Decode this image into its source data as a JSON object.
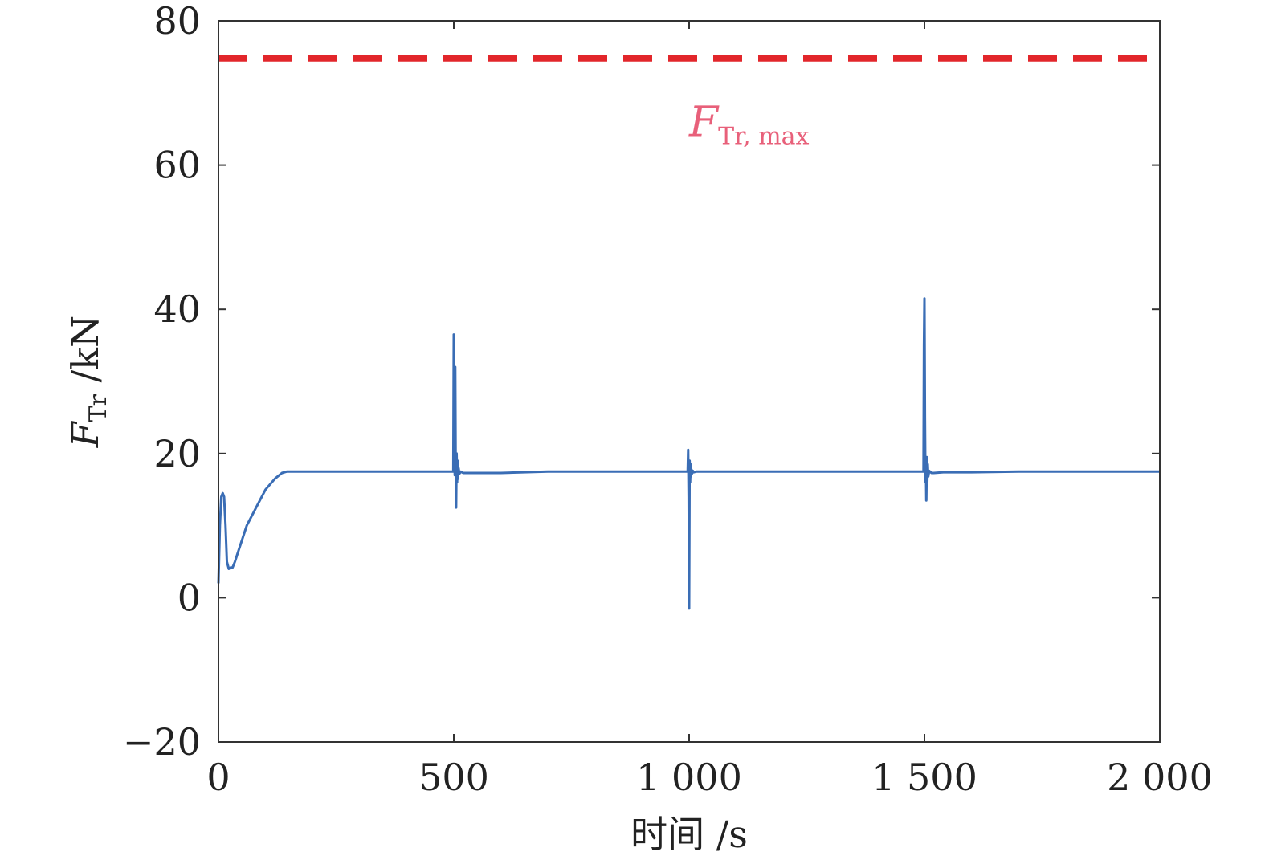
{
  "chart_data": {
    "type": "line",
    "xlabel": "时间 /s",
    "ylabel": {
      "main": "F",
      "sub": "Tr",
      "unit": " /kN"
    },
    "xlim": [
      0,
      2000
    ],
    "ylim": [
      -20,
      80
    ],
    "xticks": [
      0,
      500,
      1000,
      1500,
      2000
    ],
    "xtick_labels": [
      "0",
      "500",
      "1 000",
      "1 500",
      "2 000"
    ],
    "yticks": [
      -20,
      0,
      20,
      40,
      60,
      80
    ],
    "ytick_labels": [
      "−20",
      "0",
      "20",
      "40",
      "60",
      "80"
    ],
    "grid": false,
    "series": [
      {
        "color": "#3a6db5",
        "style": "solid",
        "x": [
          0,
          3,
          6,
          9,
          12,
          15,
          18,
          22,
          26,
          30,
          35,
          40,
          50,
          60,
          80,
          100,
          120,
          135,
          145,
          150,
          200,
          300,
          400,
          490,
          499,
          500,
          501,
          502,
          503,
          504,
          505,
          506,
          507,
          508,
          509,
          510,
          512,
          515,
          520,
          530,
          550,
          600,
          700,
          800,
          900,
          990,
          997,
          998,
          999,
          1000,
          1001,
          1002,
          1003,
          1004,
          1005,
          1006,
          1008,
          1010,
          1015,
          1020,
          1040,
          1100,
          1200,
          1300,
          1400,
          1490,
          1497,
          1498,
          1499,
          1500,
          1501,
          1502,
          1503,
          1504,
          1505,
          1506,
          1507,
          1508,
          1510,
          1515,
          1520,
          1540,
          1600,
          1700,
          1800,
          1900,
          2000
        ],
        "y": [
          2,
          10,
          14,
          14.5,
          14,
          10,
          5,
          4,
          4.2,
          4.2,
          5,
          6,
          8,
          10,
          12.5,
          15,
          16.5,
          17.3,
          17.5,
          17.5,
          17.5,
          17.5,
          17.5,
          17.5,
          17.5,
          36.5,
          25,
          17,
          32,
          19,
          12.5,
          20,
          16,
          19,
          16.5,
          18,
          17.2,
          17.5,
          17.3,
          17.3,
          17.3,
          17.3,
          17.5,
          17.5,
          17.5,
          17.5,
          17.5,
          20.5,
          14,
          -1.5,
          19,
          16,
          18.5,
          16.8,
          17.8,
          17.2,
          17.6,
          17.4,
          17.5,
          17.5,
          17.5,
          17.5,
          17.5,
          17.5,
          17.5,
          17.5,
          17.5,
          17.5,
          35,
          41.5,
          25,
          16,
          19,
          13.5,
          19.5,
          16,
          18.5,
          16.8,
          17.6,
          17.3,
          17.3,
          17.4,
          17.4,
          17.5,
          17.5,
          17.5,
          17.5
        ]
      },
      {
        "color": "#e2262b",
        "style": "dashed",
        "x": [
          0,
          2000
        ],
        "y": [
          74.8,
          74.8
        ]
      }
    ],
    "annotations": [
      {
        "text": "F",
        "sub": "Tr, max",
        "color": "#e8607a",
        "x": 1000,
        "y": 64
      }
    ]
  }
}
